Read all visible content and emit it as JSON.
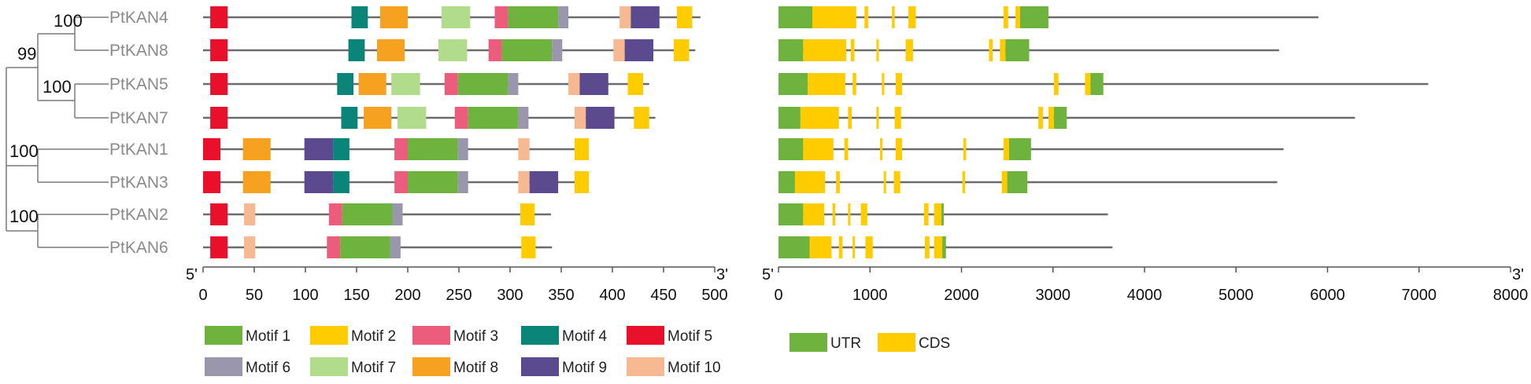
{
  "genes": [
    "PtKAN4",
    "PtKAN8",
    "PtKAN5",
    "PtKAN7",
    "PtKAN1",
    "PtKAN3",
    "PtKAN2",
    "PtKAN6"
  ],
  "bootstrap": [
    "100",
    "99",
    "100",
    "100",
    "100"
  ],
  "motif_colors": {
    "1": "#6fb33f",
    "2": "#ffcc00",
    "3": "#ec5c7c",
    "4": "#0b8577",
    "5": "#e8102a",
    "6": "#9a97ad",
    "7": "#b1dc8c",
    "8": "#f6a11f",
    "9": "#5b4a8e",
    "10": "#f7b991"
  },
  "structure_colors": {
    "UTR": "#6fb33f",
    "CDS": "#ffcc00"
  },
  "motif_panel": {
    "end5": "5'",
    "end3": "3'",
    "ticks": [
      "0",
      "50",
      "100",
      "150",
      "200",
      "250",
      "300",
      "350",
      "400",
      "450",
      "500"
    ],
    "xlim": [
      0,
      500
    ],
    "genes": [
      {
        "name": "PtKAN4",
        "length": 486,
        "motifs": [
          {
            "m": 5,
            "s": 7,
            "e": 24
          },
          {
            "m": 4,
            "s": 145,
            "e": 161
          },
          {
            "m": 8,
            "s": 173,
            "e": 200
          },
          {
            "m": 7,
            "s": 233,
            "e": 261
          },
          {
            "m": 3,
            "s": 285,
            "e": 298
          },
          {
            "m": 1,
            "s": 298,
            "e": 347
          },
          {
            "m": 6,
            "s": 347,
            "e": 357
          },
          {
            "m": 10,
            "s": 407,
            "e": 418
          },
          {
            "m": 9,
            "s": 418,
            "e": 446
          },
          {
            "m": 2,
            "s": 463,
            "e": 478
          }
        ]
      },
      {
        "name": "PtKAN8",
        "length": 481,
        "motifs": [
          {
            "m": 5,
            "s": 7,
            "e": 24
          },
          {
            "m": 4,
            "s": 142,
            "e": 158
          },
          {
            "m": 8,
            "s": 170,
            "e": 197
          },
          {
            "m": 7,
            "s": 230,
            "e": 258
          },
          {
            "m": 3,
            "s": 279,
            "e": 292
          },
          {
            "m": 1,
            "s": 292,
            "e": 341
          },
          {
            "m": 6,
            "s": 341,
            "e": 351
          },
          {
            "m": 10,
            "s": 401,
            "e": 412
          },
          {
            "m": 9,
            "s": 412,
            "e": 440
          },
          {
            "m": 2,
            "s": 460,
            "e": 475
          }
        ]
      },
      {
        "name": "PtKAN5",
        "length": 436,
        "motifs": [
          {
            "m": 5,
            "s": 7,
            "e": 24
          },
          {
            "m": 4,
            "s": 131,
            "e": 147
          },
          {
            "m": 8,
            "s": 152,
            "e": 179
          },
          {
            "m": 7,
            "s": 184,
            "e": 212
          },
          {
            "m": 3,
            "s": 236,
            "e": 249
          },
          {
            "m": 1,
            "s": 249,
            "e": 298
          },
          {
            "m": 6,
            "s": 298,
            "e": 308
          },
          {
            "m": 10,
            "s": 357,
            "e": 368
          },
          {
            "m": 9,
            "s": 368,
            "e": 396
          },
          {
            "m": 2,
            "s": 415,
            "e": 430
          }
        ]
      },
      {
        "name": "PtKAN7",
        "length": 442,
        "motifs": [
          {
            "m": 5,
            "s": 7,
            "e": 24
          },
          {
            "m": 4,
            "s": 135,
            "e": 151
          },
          {
            "m": 8,
            "s": 157,
            "e": 184
          },
          {
            "m": 7,
            "s": 190,
            "e": 218
          },
          {
            "m": 3,
            "s": 246,
            "e": 259
          },
          {
            "m": 1,
            "s": 259,
            "e": 308
          },
          {
            "m": 6,
            "s": 308,
            "e": 318
          },
          {
            "m": 10,
            "s": 363,
            "e": 374
          },
          {
            "m": 9,
            "s": 374,
            "e": 402
          },
          {
            "m": 2,
            "s": 421,
            "e": 436
          }
        ]
      },
      {
        "name": "PtKAN1",
        "length": 377,
        "motifs": [
          {
            "m": 5,
            "s": 0,
            "e": 17
          },
          {
            "m": 8,
            "s": 39,
            "e": 66
          },
          {
            "m": 9,
            "s": 99,
            "e": 127
          },
          {
            "m": 4,
            "s": 127,
            "e": 143
          },
          {
            "m": 3,
            "s": 187,
            "e": 200
          },
          {
            "m": 1,
            "s": 200,
            "e": 249
          },
          {
            "m": 6,
            "s": 249,
            "e": 259
          },
          {
            "m": 10,
            "s": 308,
            "e": 319
          },
          {
            "m": 2,
            "s": 363,
            "e": 377
          }
        ]
      },
      {
        "name": "PtKAN3",
        "length": 377,
        "motifs": [
          {
            "m": 5,
            "s": 0,
            "e": 17
          },
          {
            "m": 8,
            "s": 39,
            "e": 66
          },
          {
            "m": 9,
            "s": 99,
            "e": 127
          },
          {
            "m": 4,
            "s": 127,
            "e": 143
          },
          {
            "m": 3,
            "s": 187,
            "e": 200
          },
          {
            "m": 1,
            "s": 200,
            "e": 249
          },
          {
            "m": 6,
            "s": 249,
            "e": 259
          },
          {
            "m": 10,
            "s": 308,
            "e": 319
          },
          {
            "m": 9,
            "s": 319,
            "e": 347
          },
          {
            "m": 2,
            "s": 363,
            "e": 377
          }
        ]
      },
      {
        "name": "PtKAN2",
        "length": 340,
        "motifs": [
          {
            "m": 5,
            "s": 7,
            "e": 24
          },
          {
            "m": 10,
            "s": 40,
            "e": 51
          },
          {
            "m": 3,
            "s": 123,
            "e": 136
          },
          {
            "m": 1,
            "s": 136,
            "e": 185
          },
          {
            "m": 6,
            "s": 185,
            "e": 195
          },
          {
            "m": 2,
            "s": 310,
            "e": 324
          }
        ]
      },
      {
        "name": "PtKAN6",
        "length": 341,
        "motifs": [
          {
            "m": 5,
            "s": 7,
            "e": 24
          },
          {
            "m": 10,
            "s": 40,
            "e": 51
          },
          {
            "m": 3,
            "s": 121,
            "e": 134
          },
          {
            "m": 1,
            "s": 134,
            "e": 183
          },
          {
            "m": 6,
            "s": 183,
            "e": 193
          },
          {
            "m": 2,
            "s": 311,
            "e": 325
          }
        ]
      }
    ]
  },
  "structure_panel": {
    "end5": "5'",
    "end3": "3'",
    "ticks": [
      "0",
      "1000",
      "2000",
      "3000",
      "4000",
      "5000",
      "6000",
      "7000",
      "8000"
    ],
    "xlim": [
      0,
      8000
    ],
    "genes": [
      {
        "name": "PtKAN4",
        "length": 5900,
        "features": [
          {
            "t": "UTR",
            "s": 0,
            "e": 370
          },
          {
            "t": "CDS",
            "s": 370,
            "e": 850
          },
          {
            "t": "CDS",
            "s": 940,
            "e": 980
          },
          {
            "t": "CDS",
            "s": 1240,
            "e": 1270
          },
          {
            "t": "CDS",
            "s": 1420,
            "e": 1500
          },
          {
            "t": "CDS",
            "s": 2460,
            "e": 2510
          },
          {
            "t": "CDS",
            "s": 2590,
            "e": 2640
          },
          {
            "t": "UTR",
            "s": 2640,
            "e": 2950
          }
        ]
      },
      {
        "name": "PtKAN8",
        "length": 5470,
        "features": [
          {
            "t": "UTR",
            "s": 0,
            "e": 270
          },
          {
            "t": "CDS",
            "s": 270,
            "e": 740
          },
          {
            "t": "CDS",
            "s": 790,
            "e": 830
          },
          {
            "t": "CDS",
            "s": 1070,
            "e": 1090
          },
          {
            "t": "CDS",
            "s": 1390,
            "e": 1470
          },
          {
            "t": "CDS",
            "s": 2300,
            "e": 2340
          },
          {
            "t": "CDS",
            "s": 2420,
            "e": 2480
          },
          {
            "t": "UTR",
            "s": 2480,
            "e": 2740
          }
        ]
      },
      {
        "name": "PtKAN5",
        "length": 7100,
        "features": [
          {
            "t": "UTR",
            "s": 0,
            "e": 320
          },
          {
            "t": "CDS",
            "s": 320,
            "e": 730
          },
          {
            "t": "CDS",
            "s": 810,
            "e": 850
          },
          {
            "t": "CDS",
            "s": 1130,
            "e": 1150
          },
          {
            "t": "CDS",
            "s": 1280,
            "e": 1350
          },
          {
            "t": "CDS",
            "s": 3010,
            "e": 3060
          },
          {
            "t": "CDS",
            "s": 3350,
            "e": 3410
          },
          {
            "t": "UTR",
            "s": 3410,
            "e": 3550
          }
        ]
      },
      {
        "name": "PtKAN7",
        "length": 6300,
        "features": [
          {
            "t": "UTR",
            "s": 0,
            "e": 240
          },
          {
            "t": "CDS",
            "s": 240,
            "e": 660
          },
          {
            "t": "CDS",
            "s": 760,
            "e": 800
          },
          {
            "t": "CDS",
            "s": 1070,
            "e": 1090
          },
          {
            "t": "CDS",
            "s": 1270,
            "e": 1340
          },
          {
            "t": "CDS",
            "s": 2840,
            "e": 2890
          },
          {
            "t": "CDS",
            "s": 2950,
            "e": 3010
          },
          {
            "t": "UTR",
            "s": 3010,
            "e": 3150
          }
        ]
      },
      {
        "name": "PtKAN1",
        "length": 5520,
        "features": [
          {
            "t": "UTR",
            "s": 0,
            "e": 270
          },
          {
            "t": "CDS",
            "s": 270,
            "e": 600
          },
          {
            "t": "CDS",
            "s": 720,
            "e": 760
          },
          {
            "t": "CDS",
            "s": 1110,
            "e": 1130
          },
          {
            "t": "CDS",
            "s": 1280,
            "e": 1350
          },
          {
            "t": "CDS",
            "s": 2020,
            "e": 2050
          },
          {
            "t": "CDS",
            "s": 2460,
            "e": 2520
          },
          {
            "t": "UTR",
            "s": 2520,
            "e": 2760
          }
        ]
      },
      {
        "name": "PtKAN3",
        "length": 5450,
        "features": [
          {
            "t": "UTR",
            "s": 0,
            "e": 180
          },
          {
            "t": "CDS",
            "s": 180,
            "e": 510
          },
          {
            "t": "CDS",
            "s": 630,
            "e": 670
          },
          {
            "t": "CDS",
            "s": 1150,
            "e": 1170
          },
          {
            "t": "CDS",
            "s": 1260,
            "e": 1330
          },
          {
            "t": "CDS",
            "s": 2010,
            "e": 2040
          },
          {
            "t": "CDS",
            "s": 2440,
            "e": 2500
          },
          {
            "t": "UTR",
            "s": 2500,
            "e": 2720
          }
        ]
      },
      {
        "name": "PtKAN2",
        "length": 3600,
        "features": [
          {
            "t": "UTR",
            "s": 0,
            "e": 270
          },
          {
            "t": "CDS",
            "s": 270,
            "e": 500
          },
          {
            "t": "CDS",
            "s": 590,
            "e": 620
          },
          {
            "t": "CDS",
            "s": 760,
            "e": 780
          },
          {
            "t": "CDS",
            "s": 900,
            "e": 970
          },
          {
            "t": "CDS",
            "s": 1590,
            "e": 1640
          },
          {
            "t": "CDS",
            "s": 1700,
            "e": 1780
          },
          {
            "t": "UTR",
            "s": 1780,
            "e": 1800
          }
        ]
      },
      {
        "name": "PtKAN6",
        "length": 3650,
        "features": [
          {
            "t": "UTR",
            "s": 0,
            "e": 340
          },
          {
            "t": "CDS",
            "s": 340,
            "e": 580
          },
          {
            "t": "CDS",
            "s": 660,
            "e": 700
          },
          {
            "t": "CDS",
            "s": 810,
            "e": 830
          },
          {
            "t": "CDS",
            "s": 950,
            "e": 1030
          },
          {
            "t": "CDS",
            "s": 1600,
            "e": 1650
          },
          {
            "t": "CDS",
            "s": 1700,
            "e": 1790
          },
          {
            "t": "UTR",
            "s": 1790,
            "e": 1830
          }
        ]
      }
    ]
  },
  "legend_motifs": [
    "Motif 1",
    "Motif 2",
    "Motif 3",
    "Motif 4",
    "Motif 5",
    "Motif 6",
    "Motif 7",
    "Motif 8",
    "Motif 9",
    "Motif 10"
  ],
  "legend_structure": [
    "UTR",
    "CDS"
  ]
}
